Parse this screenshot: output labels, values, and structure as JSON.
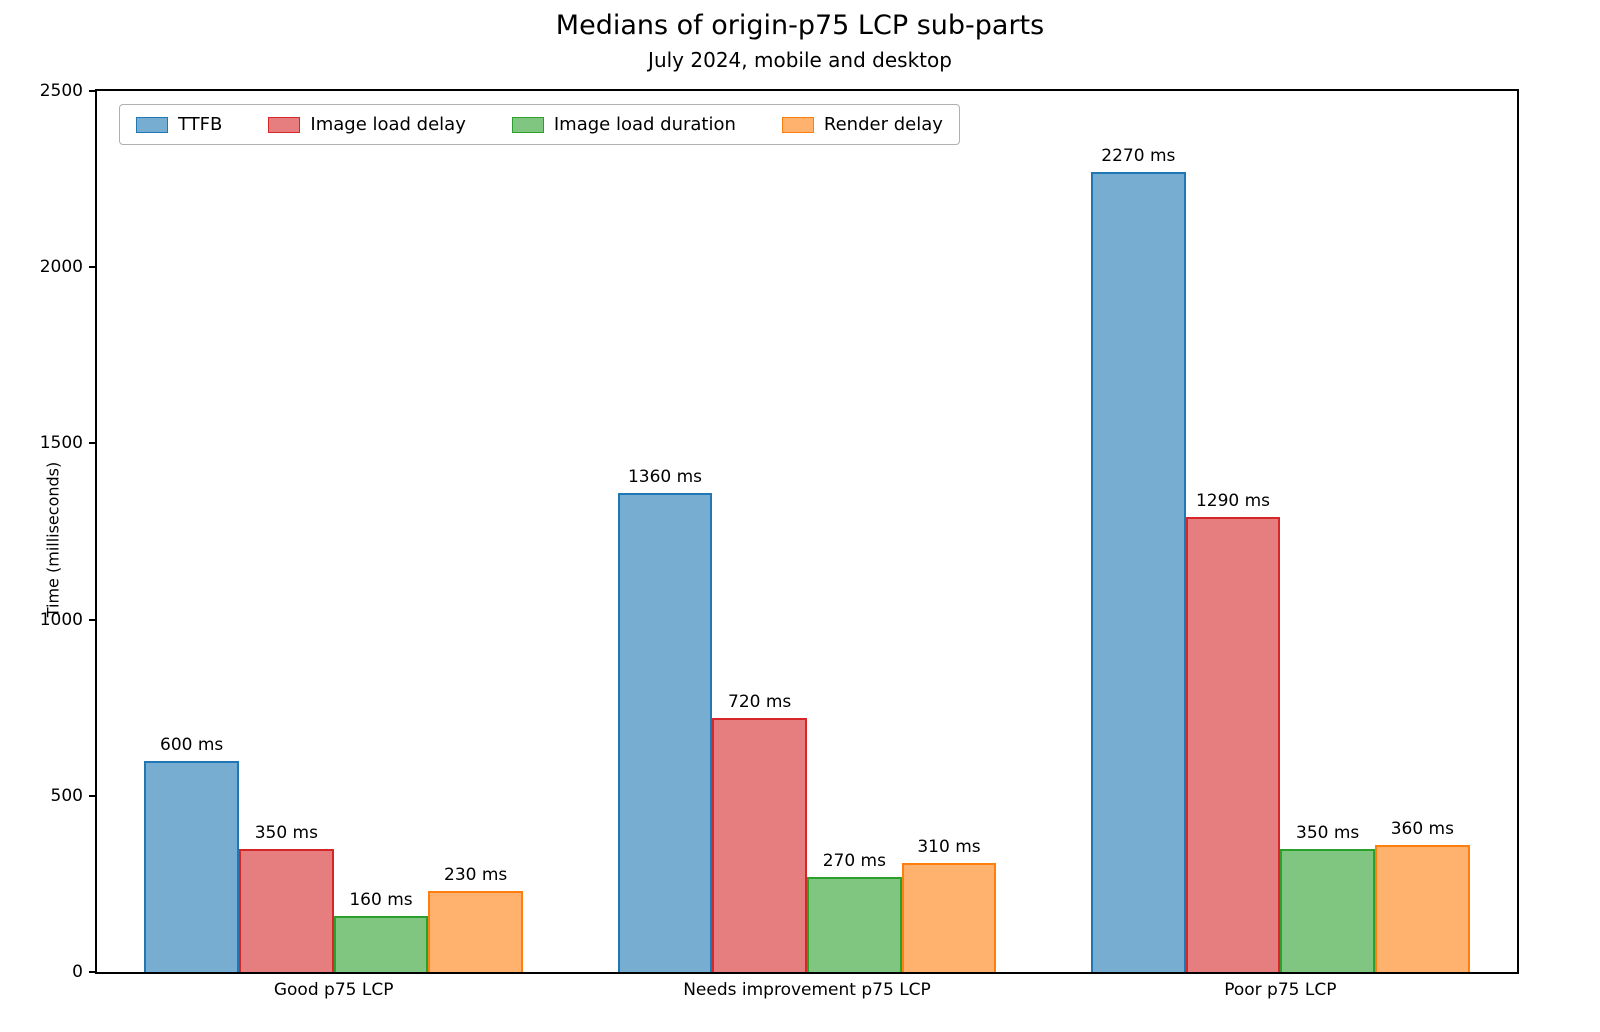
{
  "chart_data": {
    "type": "bar",
    "title": "Medians of origin-p75 LCP sub-parts",
    "subtitle": "July 2024, mobile and desktop",
    "xlabel": "",
    "ylabel": "Time (milliseconds)",
    "categories": [
      "Good p75 LCP",
      "Needs improvement p75 LCP",
      "Poor p75 LCP"
    ],
    "series": [
      {
        "name": "TTFB",
        "values": [
          600,
          1360,
          2270
        ],
        "fill": "#78add2",
        "edge": "#1f77b4"
      },
      {
        "name": "Image load delay",
        "values": [
          350,
          720,
          1290
        ],
        "fill": "#e67d7e",
        "edge": "#d62728"
      },
      {
        "name": "Image load duration",
        "values": [
          160,
          270,
          350
        ],
        "fill": "#80c680",
        "edge": "#2ca02c"
      },
      {
        "name": "Render delay",
        "values": [
          230,
          310,
          360
        ],
        "fill": "#ffb26e",
        "edge": "#ff7f0e"
      }
    ],
    "ylim": [
      0,
      2500
    ],
    "yticks": [
      0,
      500,
      1000,
      1500,
      2000,
      2500
    ],
    "value_suffix": " ms",
    "legend_position": "upper left",
    "grid": false
  }
}
